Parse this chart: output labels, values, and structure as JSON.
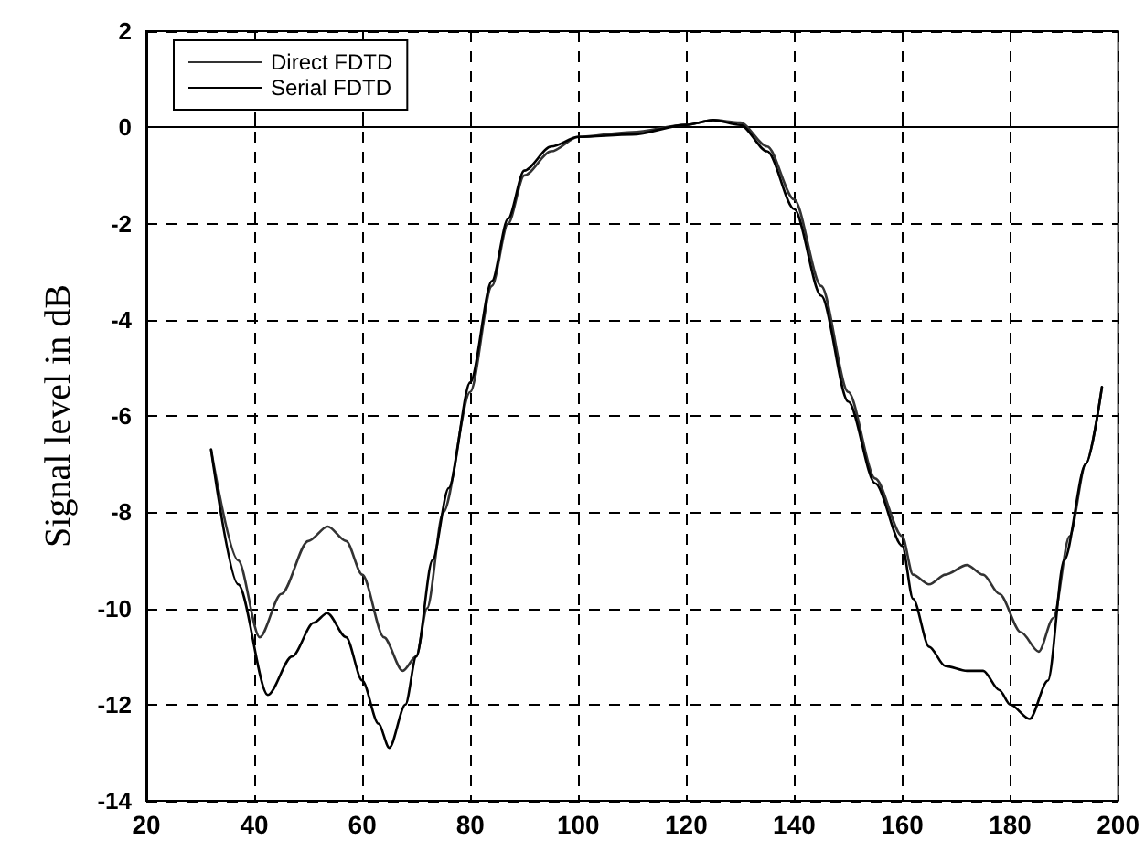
{
  "chart_data": {
    "type": "line",
    "ylabel": "Signal level in dB",
    "xlim": [
      20,
      200
    ],
    "xticks": [
      20,
      40,
      60,
      80,
      100,
      120,
      140,
      160,
      180,
      200
    ],
    "ylim": [
      -14,
      2
    ],
    "yticks": [
      -14,
      -12,
      -10,
      -8,
      -6,
      -4,
      -2,
      0,
      2
    ],
    "grid": true,
    "legend": "top left",
    "marker": "none",
    "line_style": "solid",
    "series": [
      {
        "name": "Direct FDTD",
        "color": "#333333",
        "x": [
          32,
          37,
          41,
          45,
          50,
          53.6,
          57,
          60,
          64,
          67.5,
          70,
          72,
          75,
          80,
          84,
          87,
          90,
          95,
          100,
          110,
          120,
          125,
          130,
          135,
          140,
          145,
          150,
          155,
          160,
          162,
          165,
          168,
          172,
          175,
          178,
          182,
          185.3,
          188,
          191,
          194,
          197
        ],
        "values": [
          -6.7,
          -9,
          -10.6,
          -9.7,
          -8.6,
          -8.3,
          -8.6,
          -9.3,
          -10.6,
          -11.3,
          -11,
          -10,
          -8,
          -5.5,
          -3.3,
          -2,
          -1,
          -0.5,
          -0.2,
          -0.1,
          0.05,
          0.15,
          0.1,
          -0.4,
          -1.5,
          -3.3,
          -5.5,
          -7.3,
          -8.5,
          -9.3,
          -9.5,
          -9.3,
          -9.1,
          -9.3,
          -9.7,
          -10.5,
          -10.9,
          -10.2,
          -8.5,
          -7,
          -5.4
        ]
      },
      {
        "name": "Serial FDTD",
        "color": "#000000",
        "x": [
          32,
          37,
          42.5,
          47,
          51,
          53.5,
          57,
          60,
          63,
          65,
          68,
          70,
          73,
          76,
          80,
          84,
          87,
          90,
          95,
          100,
          110,
          120,
          125,
          130,
          135,
          140,
          145,
          150,
          155,
          160,
          162,
          165,
          168,
          172,
          175,
          178,
          180,
          183.6,
          187,
          190,
          194,
          197
        ],
        "values": [
          -6.7,
          -9.5,
          -11.8,
          -11,
          -10.3,
          -10.1,
          -10.6,
          -11.5,
          -12.4,
          -12.9,
          -12,
          -11,
          -9,
          -7.5,
          -5.3,
          -3.2,
          -1.9,
          -0.9,
          -0.4,
          -0.2,
          -0.15,
          0.05,
          0.15,
          0.05,
          -0.5,
          -1.7,
          -3.5,
          -5.7,
          -7.4,
          -8.7,
          -9.8,
          -10.8,
          -11.2,
          -11.3,
          -11.3,
          -11.7,
          -12,
          -12.3,
          -11.5,
          -9,
          -7,
          -5.4
        ]
      }
    ]
  }
}
